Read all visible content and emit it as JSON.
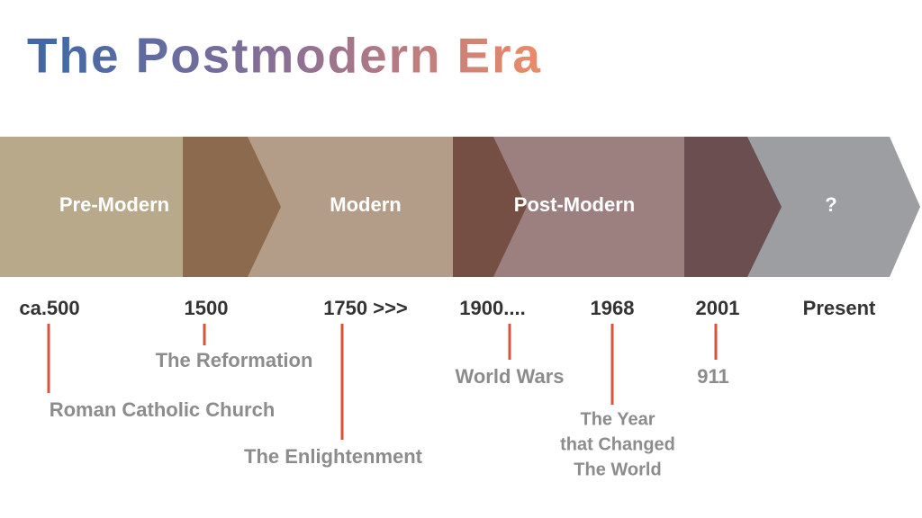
{
  "title": "The Postmodern Era",
  "eras": [
    {
      "label": "Pre-Modern"
    },
    {
      "label": "Modern"
    },
    {
      "label": "Post-Modern"
    },
    {
      "label": "?"
    }
  ],
  "dates": [
    "ca.500",
    "1500",
    "1750 >>>",
    "1900....",
    "1968",
    "2001",
    "Present"
  ],
  "events": [
    {
      "lines": [
        "Roman Catholic Church"
      ]
    },
    {
      "lines": [
        "The Reformation"
      ]
    },
    {
      "lines": [
        "The Enlightenment"
      ]
    },
    {
      "lines": [
        "World Wars"
      ]
    },
    {
      "lines": [
        "The Year",
        "that Changed",
        "The World"
      ]
    },
    {
      "lines": [
        "911"
      ]
    }
  ]
}
